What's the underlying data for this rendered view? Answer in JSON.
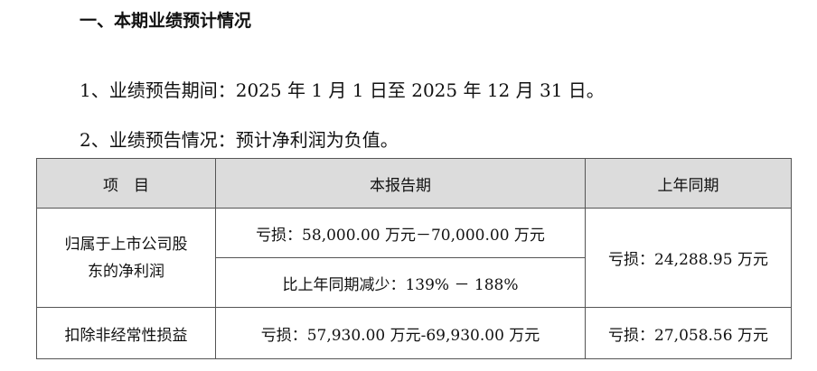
{
  "heading": "一、本期业绩预计情况",
  "para1": "1、业绩预告期间：2025 年 1 月 1 日至 2025 年 12 月 31 日。",
  "para2": "2、业绩预告情况：预计净利润为负值。",
  "table": {
    "headers": [
      "项　目",
      "本报告期",
      "上年同期"
    ],
    "row1": {
      "label_line1": "归属于上市公司股",
      "label_line2": "东的净利润",
      "current": "亏损：58,000.00 万元－70,000.00 万元",
      "change": "比上年同期减少：139% － 188%",
      "prior": "亏损：24,288.95 万元"
    },
    "row2": {
      "label": "扣除非经常性损益",
      "current": "亏损：57,930.00 万元-69,930.00 万元",
      "prior": "亏损：27,058.56 万元"
    }
  }
}
